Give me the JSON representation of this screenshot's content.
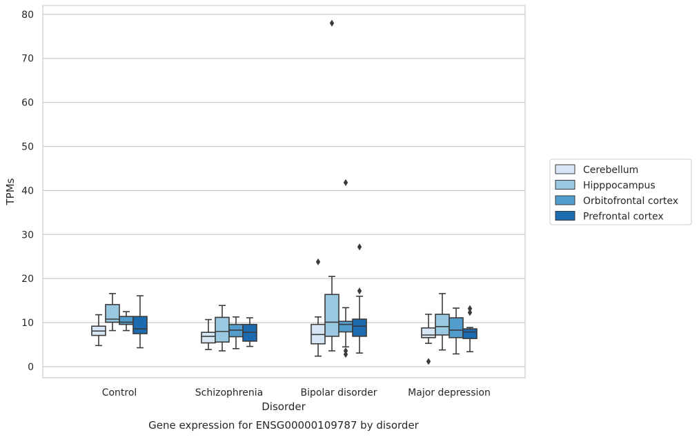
{
  "chart_data": {
    "type": "box",
    "caption": "Gene expression for ENSG00000109787 by disorder",
    "xlabel": "Disorder",
    "ylabel": "TPMs",
    "ylim": [
      -2.5,
      82
    ],
    "yticks": [
      0,
      10,
      20,
      30,
      40,
      50,
      60,
      70,
      80
    ],
    "grid": true,
    "legend_position": "right",
    "categories": [
      "Control",
      "Schizophrenia",
      "Bipolar disorder",
      "Major depression"
    ],
    "series": [
      {
        "name": "Cerebellum",
        "color": "#d6e6f4",
        "boxes": [
          {
            "whisker_low": 4.8,
            "q1": 7.1,
            "median": 8.1,
            "q3": 9.2,
            "whisker_high": 11.8,
            "outliers": []
          },
          {
            "whisker_low": 3.9,
            "q1": 5.4,
            "median": 6.9,
            "q3": 7.8,
            "whisker_high": 10.7,
            "outliers": []
          },
          {
            "whisker_low": 2.4,
            "q1": 5.2,
            "median": 7.3,
            "q3": 9.6,
            "whisker_high": 11.3,
            "outliers": [
              23.8
            ]
          },
          {
            "whisker_low": 5.3,
            "q1": 6.6,
            "median": 7.2,
            "q3": 8.8,
            "whisker_high": 11.9,
            "outliers": [
              1.2
            ]
          }
        ]
      },
      {
        "name": "Hipppocampus",
        "color": "#9ac8e0",
        "boxes": [
          {
            "whisker_low": 8.2,
            "q1": 10.1,
            "median": 10.8,
            "q3": 14.1,
            "whisker_high": 16.6,
            "outliers": []
          },
          {
            "whisker_low": 3.6,
            "q1": 5.6,
            "median": 8.0,
            "q3": 11.2,
            "whisker_high": 13.9,
            "outliers": []
          },
          {
            "whisker_low": 3.6,
            "q1": 6.9,
            "median": 10.1,
            "q3": 16.4,
            "whisker_high": 20.5,
            "outliers": [
              78.0
            ]
          },
          {
            "whisker_low": 3.8,
            "q1": 7.2,
            "median": 9.1,
            "q3": 11.9,
            "whisker_high": 16.6,
            "outliers": []
          }
        ]
      },
      {
        "name": "Orbitofrontal cortex",
        "color": "#529dcc",
        "boxes": [
          {
            "whisker_low": 8.2,
            "q1": 9.6,
            "median": 10.1,
            "q3": 11.4,
            "whisker_high": 12.5,
            "outliers": []
          },
          {
            "whisker_low": 4.1,
            "q1": 6.8,
            "median": 8.3,
            "q3": 9.6,
            "whisker_high": 11.3,
            "outliers": []
          },
          {
            "whisker_low": 4.5,
            "q1": 7.9,
            "median": 9.6,
            "q3": 10.3,
            "whisker_high": 13.4,
            "outliers": [
              41.8,
              3.6,
              2.8
            ]
          },
          {
            "whisker_low": 2.9,
            "q1": 6.6,
            "median": 8.3,
            "q3": 11.1,
            "whisker_high": 13.3,
            "outliers": []
          }
        ]
      },
      {
        "name": "Prefrontal cortex",
        "color": "#1c6aaf",
        "boxes": [
          {
            "whisker_low": 4.3,
            "q1": 7.5,
            "median": 8.6,
            "q3": 11.4,
            "whisker_high": 16.1,
            "outliers": []
          },
          {
            "whisker_low": 4.6,
            "q1": 5.8,
            "median": 7.8,
            "q3": 9.6,
            "whisker_high": 11.1,
            "outliers": []
          },
          {
            "whisker_low": 3.1,
            "q1": 6.9,
            "median": 9.2,
            "q3": 10.8,
            "whisker_high": 16.0,
            "outliers": [
              27.2,
              17.2
            ]
          },
          {
            "whisker_low": 3.4,
            "q1": 6.4,
            "median": 7.9,
            "q3": 8.6,
            "whisker_high": 8.9,
            "outliers": [
              13.2,
              12.3
            ]
          }
        ]
      }
    ]
  }
}
